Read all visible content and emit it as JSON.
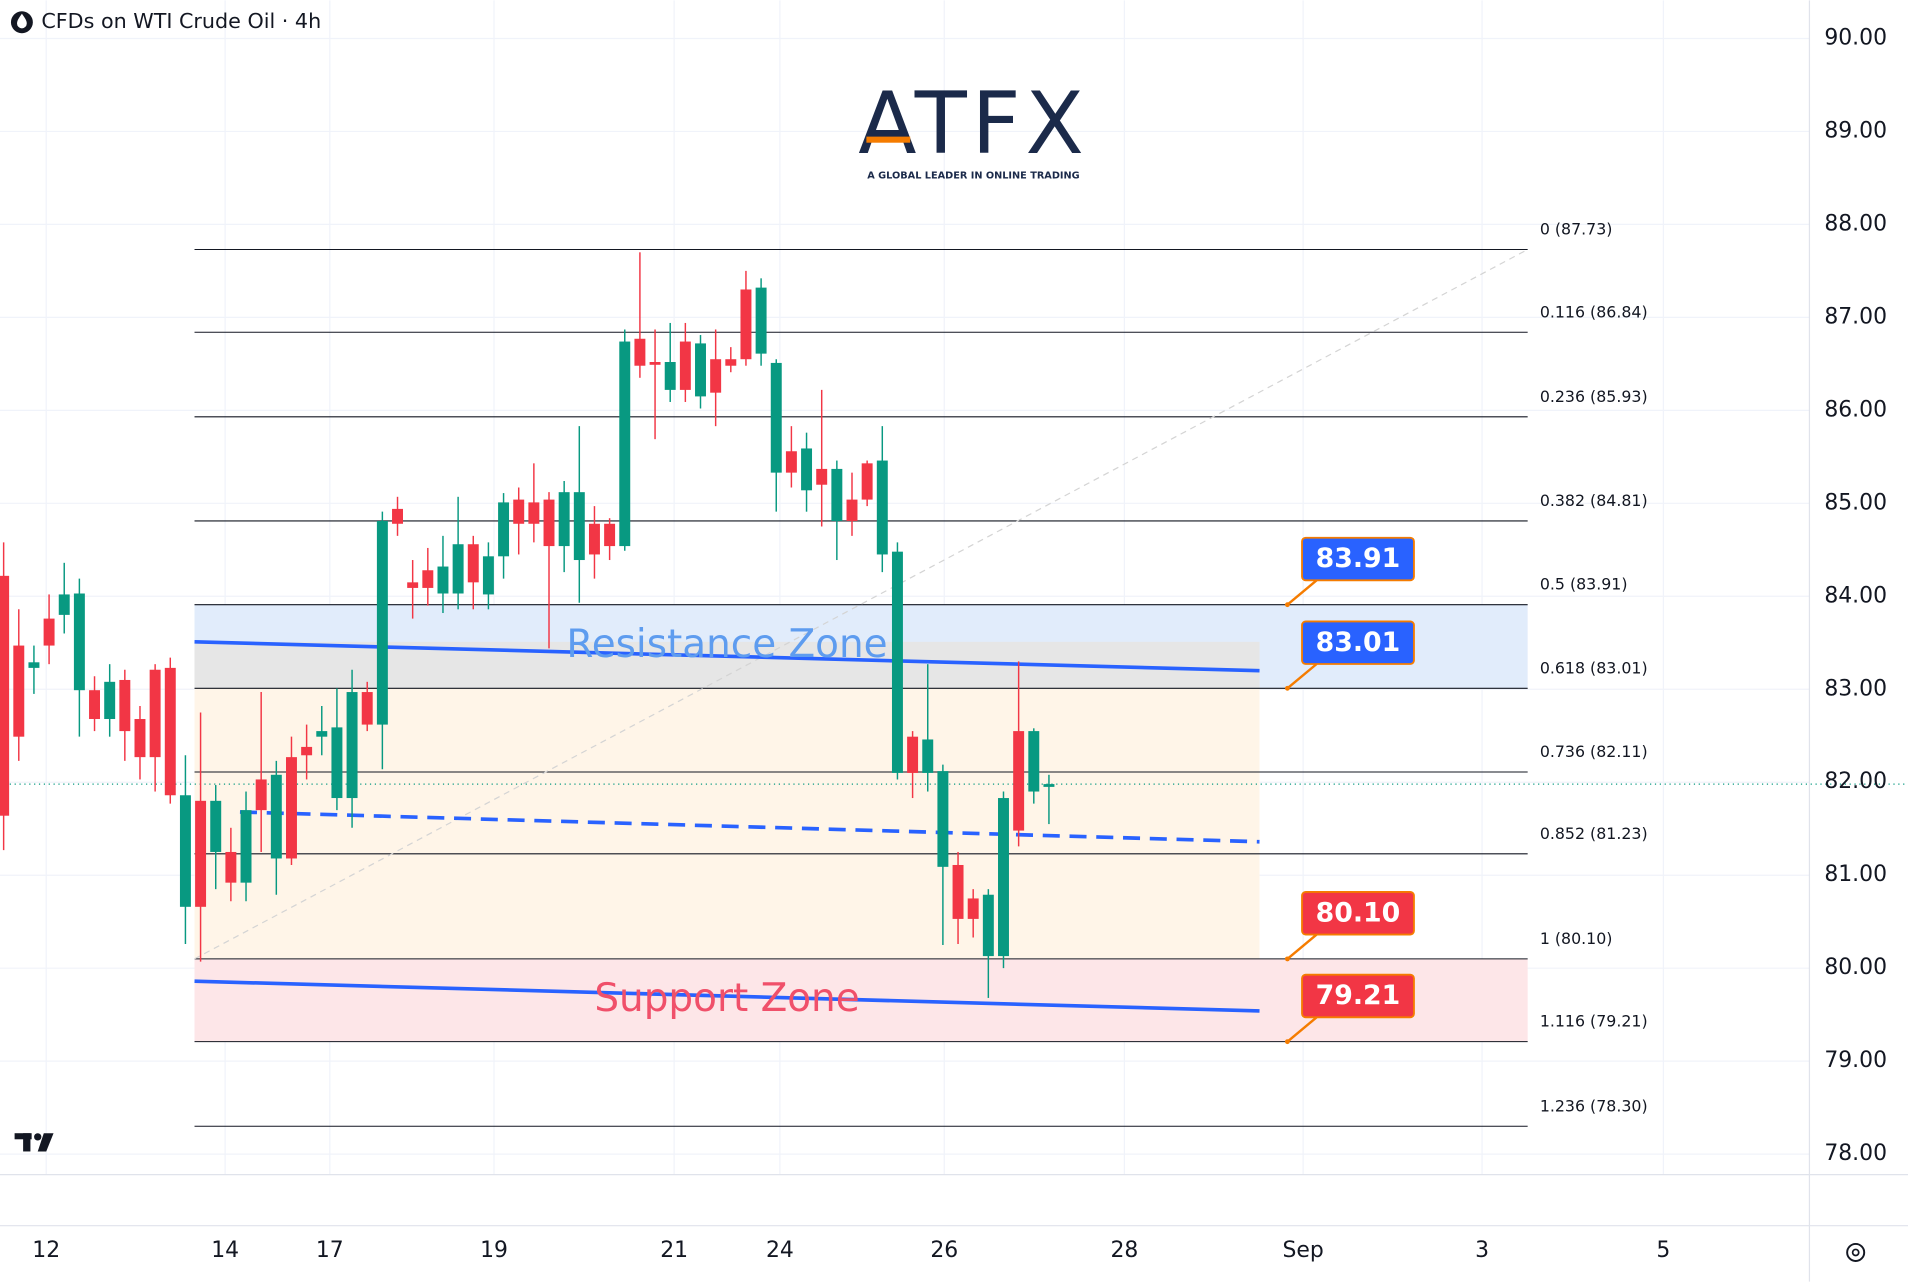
{
  "chart_data": {
    "type": "candlestick",
    "title": "CFDs on WTI Crude Oil · 4h",
    "logo": {
      "brand": "ATFX",
      "tagline": "A GLOBAL LEADER IN ONLINE TRADING"
    },
    "up_color": "#089981",
    "down_color": "#f23645",
    "open": [
      84.22,
      83.47,
      83.23,
      83.76,
      83.8,
      82.99,
      82.99,
      82.68,
      83.1,
      82.68,
      83.21,
      83.23,
      80.66,
      81.8,
      81.25,
      81.25,
      80.92,
      82.03,
      81.18,
      82.27,
      82.38,
      82.49,
      81.83,
      81.83,
      82.97,
      82.62,
      84.94,
      84.15,
      84.28,
      84.03,
      84.03,
      84.56,
      84.02,
      84.43,
      85.04,
      85.01,
      85.04,
      84.54,
      84.39,
      84.78,
      84.78,
      84.54,
      86.77,
      86.52,
      86.22,
      86.74,
      86.15,
      86.55,
      86.55,
      87.3,
      86.61,
      85.33,
      85.56,
      85.14,
      85.37,
      84.81,
      85.04,
      85.43,
      84.45,
      82.1,
      82.49,
      82.1,
      81.09,
      81.11,
      80.75,
      80.13,
      80.13,
      82.55,
      81.9,
      81.95
    ],
    "high": [
      84.58,
      83.86,
      83.47,
      84.02,
      84.36,
      84.19,
      83.14,
      83.27,
      83.21,
      82.82,
      83.27,
      83.34,
      82.29,
      82.75,
      81.97,
      81.51,
      81.9,
      82.97,
      82.23,
      82.49,
      82.62,
      82.82,
      83.01,
      83.21,
      83.08,
      84.91,
      85.07,
      84.39,
      84.52,
      84.65,
      85.07,
      84.65,
      84.58,
      85.11,
      85.17,
      85.43,
      85.12,
      85.24,
      85.83,
      84.97,
      84.84,
      86.87,
      87.7,
      86.87,
      86.94,
      86.94,
      86.81,
      86.87,
      86.68,
      87.5,
      87.42,
      86.55,
      85.83,
      85.76,
      86.22,
      85.46,
      85.33,
      85.46,
      85.83,
      84.58,
      82.55,
      83.27,
      82.19,
      81.25,
      80.85,
      80.85,
      81.9,
      83.3,
      82.58,
      82.08
    ],
    "low": [
      81.27,
      82.23,
      82.95,
      83.27,
      83.6,
      82.49,
      82.55,
      82.49,
      82.23,
      82.03,
      81.9,
      81.77,
      80.26,
      80.07,
      80.85,
      80.72,
      80.72,
      81.25,
      80.79,
      81.11,
      82.03,
      82.29,
      81.7,
      81.51,
      82.55,
      82.14,
      84.65,
      83.76,
      83.9,
      83.82,
      83.86,
      83.86,
      83.86,
      84.19,
      84.45,
      84.58,
      83.44,
      84.26,
      83.93,
      84.19,
      84.39,
      84.49,
      86.35,
      85.69,
      86.09,
      86.09,
      86.02,
      85.83,
      86.41,
      86.48,
      86.48,
      84.91,
      85.17,
      84.91,
      84.75,
      84.39,
      84.65,
      84.97,
      84.26,
      82.03,
      81.83,
      81.9,
      80.25,
      80.26,
      80.33,
      79.68,
      80.0,
      81.31,
      81.77,
      81.55
    ],
    "close": [
      81.64,
      82.49,
      83.29,
      83.47,
      84.02,
      84.03,
      82.68,
      83.08,
      82.55,
      82.27,
      82.27,
      81.86,
      81.86,
      80.66,
      81.8,
      80.92,
      81.7,
      81.7,
      82.08,
      81.18,
      82.29,
      82.55,
      82.59,
      82.97,
      82.62,
      84.81,
      84.78,
      84.09,
      84.09,
      84.32,
      84.56,
      84.15,
      84.43,
      85.01,
      84.78,
      84.78,
      84.54,
      85.12,
      85.12,
      84.45,
      84.54,
      86.74,
      86.48,
      86.49,
      86.52,
      86.22,
      86.72,
      86.19,
      86.48,
      86.55,
      87.32,
      86.51,
      85.33,
      85.59,
      85.2,
      85.37,
      84.81,
      85.04,
      85.46,
      84.48,
      82.1,
      82.46,
      82.12,
      80.53,
      80.53,
      80.79,
      81.83,
      81.48,
      82.55,
      81.98
    ],
    "xlim": [
      -0.24,
      119.2
    ],
    "xticks": [
      {
        "value": 2.81,
        "label": "12"
      },
      {
        "value": 14.62,
        "label": "14"
      },
      {
        "value": 21.53,
        "label": "17"
      },
      {
        "value": 32.37,
        "label": "19"
      },
      {
        "value": 44.26,
        "label": "21"
      },
      {
        "value": 51.24,
        "label": "24"
      },
      {
        "value": 62.09,
        "label": "26"
      },
      {
        "value": 73.98,
        "label": "28"
      },
      {
        "value": 85.78,
        "label": "Sep"
      },
      {
        "value": 97.59,
        "label": "3"
      },
      {
        "value": 109.56,
        "label": "5"
      }
    ],
    "ylim": [
      77.78,
      90.41
    ],
    "yticks": [
      {
        "value": 90,
        "label": "90.00"
      },
      {
        "value": 89,
        "label": "89.00"
      },
      {
        "value": 88,
        "label": "88.00"
      },
      {
        "value": 87,
        "label": "87.00"
      },
      {
        "value": 86,
        "label": "86.00"
      },
      {
        "value": 85,
        "label": "85.00"
      },
      {
        "value": 84,
        "label": "84.00"
      },
      {
        "value": 83,
        "label": "83.00"
      },
      {
        "value": 82,
        "label": "82.00"
      },
      {
        "value": 81,
        "label": "81.00"
      },
      {
        "value": 80,
        "label": "80.00"
      },
      {
        "value": 79,
        "label": "79.00"
      },
      {
        "value": 78,
        "label": "78.00"
      }
    ],
    "grid": true,
    "last_price": 81.98,
    "fib_range": [
      12.6,
      100.6
    ],
    "fib_levels": [
      {
        "value": 87.73,
        "label": "0 (87.73)"
      },
      {
        "value": 86.84,
        "label": "0.116 (86.84)"
      },
      {
        "value": 85.93,
        "label": "0.236 (85.93)"
      },
      {
        "value": 84.81,
        "label": "0.382 (84.81)"
      },
      {
        "value": 83.91,
        "label": "0.5 (83.91)"
      },
      {
        "value": 83.01,
        "label": "0.618 (83.01)"
      },
      {
        "value": 82.11,
        "label": "0.736 (82.11)"
      },
      {
        "value": 81.23,
        "label": "0.852 (81.23)"
      },
      {
        "value": 80.1,
        "label": "1 (80.10)"
      },
      {
        "value": 79.21,
        "label": "1.116 (79.21)"
      },
      {
        "value": 78.3,
        "label": "1.236 (78.30)"
      }
    ],
    "boxes": [
      {
        "top": 83.91,
        "bottom": 83.01,
        "x": [
          12.6,
          100.6
        ],
        "color": "#e1ecfb"
      },
      {
        "top": 80.1,
        "bottom": 79.21,
        "x": [
          12.6,
          100.6
        ],
        "color": "#fde6e8"
      },
      {
        "top": 83.01,
        "bottom": 80.1,
        "x": [
          12.6,
          82.9
        ],
        "color": "#fff5e8"
      },
      {
        "top": 83.51,
        "bottom": 83.01,
        "x": [
          12.6,
          82.9
        ],
        "color": "#e6e6e6"
      }
    ],
    "zones": [
      {
        "label": "Resistance Zone",
        "top": 83.91,
        "bottom": 83.01,
        "color": "#5e9cef"
      },
      {
        "label": "Support Zone",
        "top": 80.1,
        "bottom": 79.21,
        "color": "#f0506a"
      }
    ],
    "trend_lines": [
      {
        "x": [
          12.6,
          100.6
        ],
        "y": [
          80.1,
          87.73
        ],
        "color": "#d4d4d4",
        "dashed": true
      },
      {
        "x": [
          12.6,
          82.9
        ],
        "y": [
          83.51,
          83.2
        ],
        "color": "#2962ff",
        "dashed": false
      },
      {
        "x": [
          12.6,
          82.9
        ],
        "y": [
          79.86,
          79.54
        ],
        "color": "#2962ff",
        "dashed": false
      },
      {
        "x": [
          15.6,
          82.9
        ],
        "y": [
          81.68,
          81.36
        ],
        "color": "#2962ff",
        "dashed": true
      }
    ],
    "callouts": [
      {
        "value": 83.91,
        "label": "83.91",
        "color": "#2962ff"
      },
      {
        "value": 83.01,
        "label": "83.01",
        "color": "#2962ff"
      },
      {
        "value": 80.1,
        "label": "80.10",
        "color": "#f23645"
      },
      {
        "value": 79.21,
        "label": "79.21",
        "color": "#f23645"
      }
    ]
  }
}
